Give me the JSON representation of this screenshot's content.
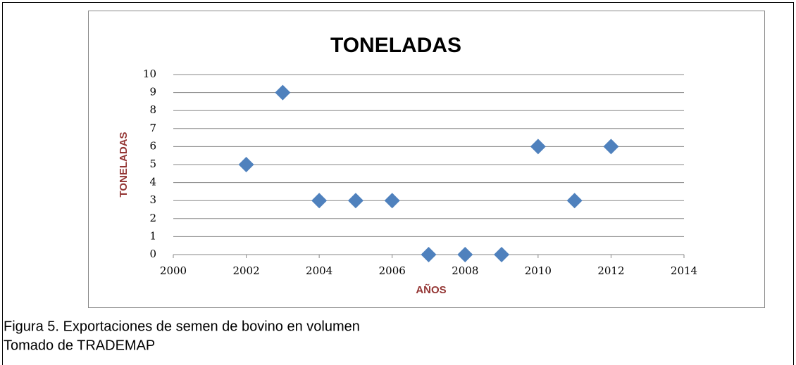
{
  "chart_data": {
    "type": "scatter",
    "title": "TONELADAS",
    "xlabel": "AÑOS",
    "ylabel": "TONELADAS",
    "x": [
      2002,
      2003,
      2004,
      2005,
      2006,
      2007,
      2008,
      2009,
      2010,
      2011,
      2012
    ],
    "values": [
      5,
      9,
      3,
      3,
      3,
      0,
      0,
      0,
      6,
      3,
      6
    ],
    "color": "#4f81bd",
    "xlim": [
      2000,
      2014
    ],
    "xticks": [
      2000,
      2002,
      2004,
      2006,
      2008,
      2010,
      2012,
      2014
    ],
    "ylim": [
      0,
      10
    ],
    "yticks": [
      0,
      1,
      2,
      3,
      4,
      5,
      6,
      7,
      8,
      9,
      10
    ],
    "grid": true
  },
  "caption": [
    "Figura 5.  Exportaciones de semen de bovino en volumen",
    "Tomado de TRADEMAP"
  ]
}
